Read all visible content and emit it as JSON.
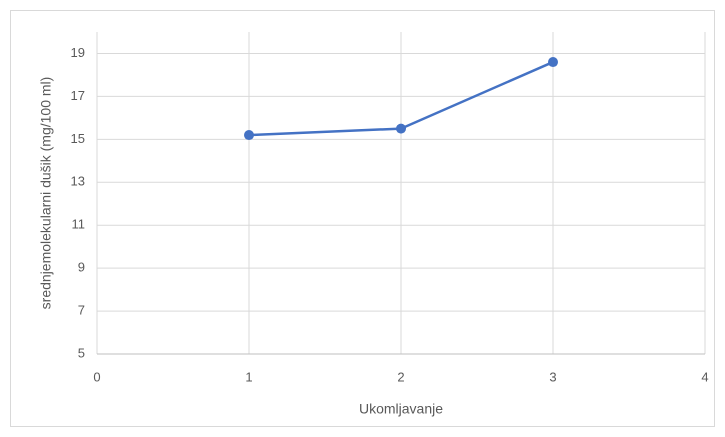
{
  "chart_data": {
    "type": "line",
    "x": [
      1,
      2,
      3
    ],
    "series": [
      {
        "name": "srednjemolekularni dušik",
        "color": "#4472c4",
        "values": [
          15.2,
          15.5,
          18.6
        ]
      }
    ],
    "xlabel": "Ukomljavanje",
    "ylabel": "srednjemolekularni dušik (mg/100 ml)",
    "xlim": [
      0,
      4
    ],
    "xticks": [
      0,
      1,
      2,
      3,
      4
    ],
    "ylim": [
      5,
      20
    ],
    "yticks": [
      5,
      7,
      9,
      11,
      13,
      15,
      17,
      19
    ],
    "grid": true
  }
}
